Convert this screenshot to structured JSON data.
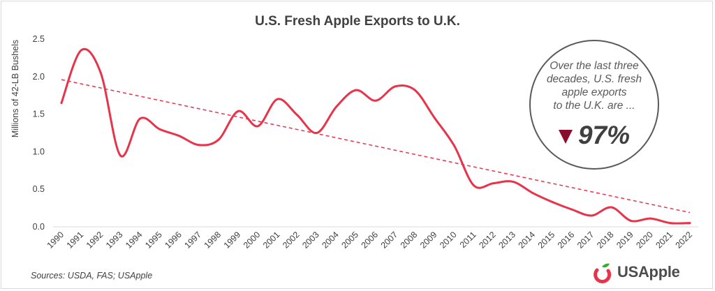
{
  "chart_data": {
    "type": "line",
    "title": "U.S. Fresh Apple Exports to U.K.",
    "ylabel": "Millions of 42-LB Bushels",
    "xlabel": "",
    "categories": [
      "1990",
      "1991",
      "1992",
      "1993",
      "1994",
      "1995",
      "1996",
      "1997",
      "1998",
      "1999",
      "2000",
      "2001",
      "2002",
      "2003",
      "2004",
      "2005",
      "2006",
      "2007",
      "2008",
      "2009",
      "2010",
      "2011",
      "2012",
      "2013",
      "2014",
      "2015",
      "2016",
      "2017",
      "2018",
      "2019",
      "2020",
      "2021",
      "2022"
    ],
    "series": [
      {
        "values": [
          1.65,
          2.35,
          2.05,
          0.95,
          1.44,
          1.3,
          1.21,
          1.09,
          1.16,
          1.54,
          1.34,
          1.7,
          1.49,
          1.25,
          1.6,
          1.82,
          1.68,
          1.87,
          1.82,
          1.45,
          1.08,
          0.55,
          0.58,
          0.6,
          0.45,
          0.33,
          0.23,
          0.15,
          0.26,
          0.08,
          0.11,
          0.05,
          0.05
        ],
        "color": "#e8334a"
      }
    ],
    "trendline": {
      "start": 1.96,
      "end": 0.19,
      "color": "#e8334a",
      "style": "dashed"
    },
    "yticks": [
      "0.0",
      "0.5",
      "1.0",
      "1.5",
      "2.0",
      "2.5"
    ],
    "ylim": [
      0,
      2.5
    ],
    "grid": false,
    "legend": "none"
  },
  "callout": {
    "text_lines": [
      "Over the last three",
      "decades, U.S. fresh",
      "apple exports",
      "to the U.K. are ..."
    ],
    "direction_icon": "down-triangle-icon",
    "percent": "97%",
    "color": "#8b0d2d"
  },
  "footer": {
    "source": "Sources: USDA, FAS; USApple",
    "logo_text": "USApple",
    "logo_colors": {
      "green": "#3aaa35",
      "red": "#e8334a"
    }
  }
}
